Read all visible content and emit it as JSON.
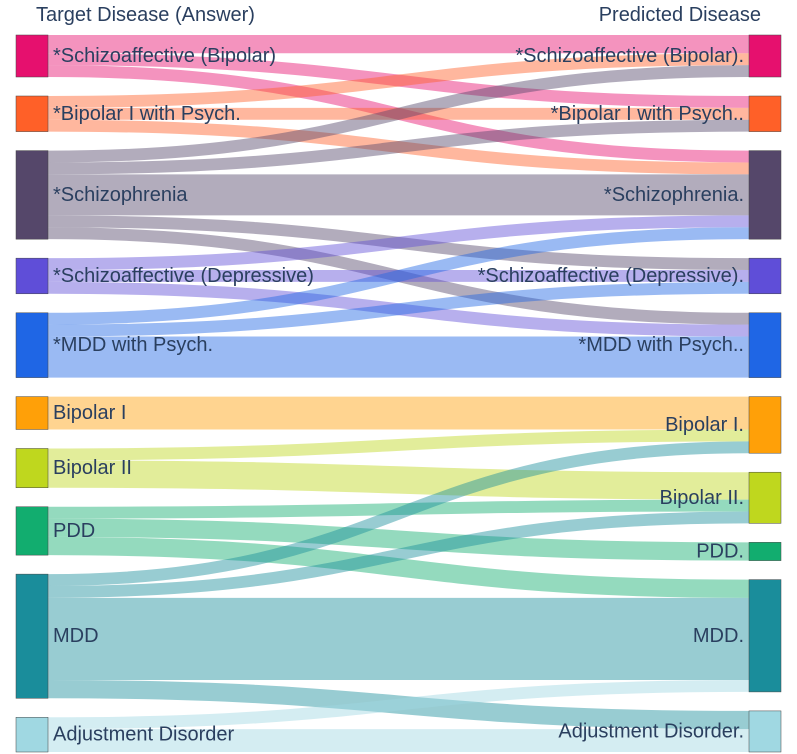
{
  "chart_data": {
    "type": "sankey",
    "title": "",
    "source_header": "Target Disease (Answer)",
    "target_header": "Predicted Disease",
    "source_nodes": [
      {
        "label": "*Schizoaffective (Bipolar)",
        "color": "#e6106e"
      },
      {
        "label": "*Bipolar I with Psych.",
        "color": "#ff6028"
      },
      {
        "label": "*Schizophrenia",
        "color": "#55476a"
      },
      {
        "label": "*Schizoaffective (Depressive)",
        "color": "#5f4ed8"
      },
      {
        "label": "*MDD with Psych.",
        "color": "#1f66e5"
      },
      {
        "label": "Bipolar I",
        "color": "#ffa008"
      },
      {
        "label": "Bipolar II",
        "color": "#bfd71e"
      },
      {
        "label": "PDD",
        "color": "#12ad6f"
      },
      {
        "label": "MDD",
        "color": "#1a8d9b"
      },
      {
        "label": "Adjustment Disorder",
        "color": "#a0d8e2"
      }
    ],
    "target_nodes": [
      {
        "label": "*Schizoaffective (Bipolar).",
        "color": "#e6106e"
      },
      {
        "label": "*Bipolar I with Psych..",
        "color": "#ff6028"
      },
      {
        "label": "*Schizophrenia.",
        "color": "#55476a"
      },
      {
        "label": "*Schizoaffective (Depressive).",
        "color": "#5f4ed8"
      },
      {
        "label": "*MDD with Psych..",
        "color": "#1f66e5"
      },
      {
        "label": "Bipolar I.",
        "color": "#ffa008"
      },
      {
        "label": "Bipolar II.",
        "color": "#bfd71e"
      },
      {
        "label": "PDD.",
        "color": "#12ad6f"
      },
      {
        "label": "MDD.",
        "color": "#1a8d9b"
      },
      {
        "label": "Adjustment Disorder.",
        "color": "#a0d8e2"
      }
    ],
    "links": [
      {
        "source": 0,
        "target": 0,
        "value": 20
      },
      {
        "source": 0,
        "target": 1,
        "value": 13
      },
      {
        "source": 0,
        "target": 2,
        "value": 13
      },
      {
        "source": 1,
        "target": 0,
        "value": 13
      },
      {
        "source": 1,
        "target": 1,
        "value": 13
      },
      {
        "source": 1,
        "target": 2,
        "value": 13
      },
      {
        "source": 2,
        "target": 0,
        "value": 13
      },
      {
        "source": 2,
        "target": 1,
        "value": 13
      },
      {
        "source": 2,
        "target": 2,
        "value": 45
      },
      {
        "source": 2,
        "target": 3,
        "value": 13
      },
      {
        "source": 2,
        "target": 4,
        "value": 13
      },
      {
        "source": 3,
        "target": 2,
        "value": 13
      },
      {
        "source": 3,
        "target": 3,
        "value": 13
      },
      {
        "source": 3,
        "target": 4,
        "value": 13
      },
      {
        "source": 4,
        "target": 2,
        "value": 13
      },
      {
        "source": 4,
        "target": 3,
        "value": 13
      },
      {
        "source": 4,
        "target": 4,
        "value": 45
      },
      {
        "source": 5,
        "target": 5,
        "value": 36
      },
      {
        "source": 6,
        "target": 5,
        "value": 13
      },
      {
        "source": 6,
        "target": 6,
        "value": 30
      },
      {
        "source": 7,
        "target": 6,
        "value": 13
      },
      {
        "source": 7,
        "target": 7,
        "value": 20
      },
      {
        "source": 7,
        "target": 8,
        "value": 20
      },
      {
        "source": 8,
        "target": 5,
        "value": 13
      },
      {
        "source": 8,
        "target": 6,
        "value": 13
      },
      {
        "source": 8,
        "target": 8,
        "value": 90
      },
      {
        "source": 8,
        "target": 9,
        "value": 20
      },
      {
        "source": 9,
        "target": 8,
        "value": 13
      },
      {
        "source": 9,
        "target": 9,
        "value": 25
      }
    ]
  }
}
